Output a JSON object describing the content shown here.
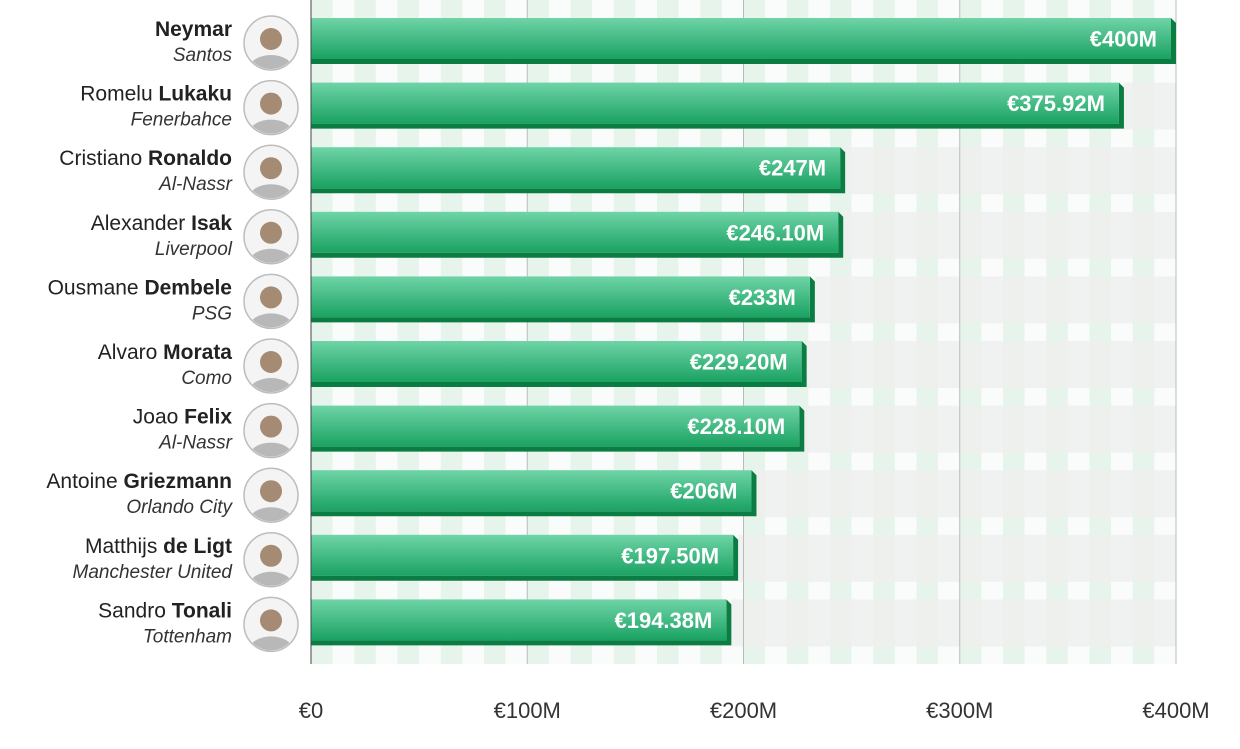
{
  "chart_data": {
    "type": "bar",
    "orientation": "horizontal",
    "title": "",
    "xlabel": "",
    "ylabel": "",
    "xlim": [
      0,
      400
    ],
    "x_ticks": [
      0,
      100,
      200,
      300,
      400
    ],
    "x_tick_labels": [
      "€0",
      "€100M",
      "€200M",
      "€300M",
      "€400M"
    ],
    "grid": true,
    "rows": [
      {
        "first": "",
        "last": "Neymar",
        "club": "Santos",
        "value": 400,
        "label": "€400M",
        "avatar_icon": "player-photo-icon"
      },
      {
        "first": "Romelu",
        "last": "Lukaku",
        "club": "Fenerbahce",
        "value": 375.92,
        "label": "€375.92M",
        "avatar_icon": "player-photo-icon"
      },
      {
        "first": "Cristiano",
        "last": "Ronaldo",
        "club": "Al-Nassr",
        "value": 247,
        "label": "€247M",
        "avatar_icon": "player-photo-icon"
      },
      {
        "first": "Alexander",
        "last": "Isak",
        "club": "Liverpool",
        "value": 246.1,
        "label": "€246.10M",
        "avatar_icon": "player-photo-icon"
      },
      {
        "first": "Ousmane",
        "last": "Dembele",
        "club": "PSG",
        "value": 233,
        "label": "€233M",
        "avatar_icon": "player-photo-icon"
      },
      {
        "first": "Alvaro",
        "last": "Morata",
        "club": "Como",
        "value": 229.2,
        "label": "€229.20M",
        "avatar_icon": "player-photo-icon"
      },
      {
        "first": "Joao",
        "last": "Felix",
        "club": "Al-Nassr",
        "value": 228.1,
        "label": "€228.10M",
        "avatar_icon": "player-photo-icon"
      },
      {
        "first": "Antoine",
        "last": "Griezmann",
        "club": "Orlando City",
        "value": 206,
        "label": "€206M",
        "avatar_icon": "player-photo-icon"
      },
      {
        "first": "Matthijs",
        "last": "de Ligt",
        "club": "Manchester United",
        "value": 197.5,
        "label": "€197.50M",
        "avatar_icon": "player-photo-icon"
      },
      {
        "first": "Sandro",
        "last": "Tonali",
        "club": "Tottenham",
        "value": 194.38,
        "label": "€194.38M",
        "avatar_icon": "player-photo-icon"
      }
    ],
    "colors": {
      "bar_top": "#6fd4a7",
      "bar_bottom": "#1aa262",
      "bar_edge": "#0c7d42",
      "band_green": "#e7f4ec",
      "band_grey": "#efefef",
      "grid_line": "#b8bdb9",
      "axis_line": "#444444",
      "label_text": "#ffffff",
      "name_text": "#222222"
    }
  }
}
